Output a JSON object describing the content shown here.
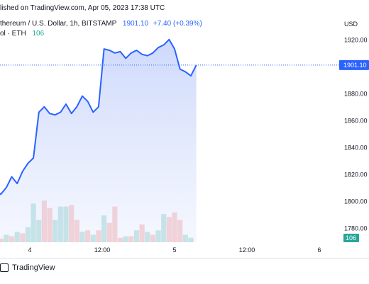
{
  "header": {
    "published": "lished on TradingView.com, Apr 05, 2023 17:38 UTC",
    "symbol": "thereum / U.S. Dollar, 1h, BITSTAMP",
    "last_value": "1901.10",
    "change": "+7.40 (+0.39%)",
    "volume_label": "ol · ETH",
    "volume_value": "106"
  },
  "axis": {
    "currency": "USD",
    "price_label": "1901.10",
    "volume_label": "106"
  },
  "footer": {
    "brand": "TradingView"
  },
  "colors": {
    "line": "#2962ff",
    "area": "#d5defc",
    "up": "#26a69a",
    "down": "#ef5350"
  },
  "chart_data": {
    "type": "line",
    "x_label": "",
    "y_label": "USD",
    "ylim": [
      1770,
      1930
    ],
    "y_ticks": [
      1780,
      1800,
      1820,
      1840,
      1860,
      1880,
      1900,
      1920
    ],
    "x_ticks": [
      {
        "label": "4",
        "t": 5
      },
      {
        "label": "12:00",
        "t": 13
      },
      {
        "label": "5",
        "t": 21
      },
      {
        "label": "12:00",
        "t": 29
      },
      {
        "label": "6",
        "t": 37
      }
    ],
    "price": [
      {
        "t": -3.5,
        "y": 1825
      },
      {
        "t": -2.9,
        "y": 1782
      },
      {
        "t": -2.3,
        "y": 1795
      },
      {
        "t": -1.8,
        "y": 1805
      },
      {
        "t": -1.2,
        "y": 1810
      },
      {
        "t": -0.6,
        "y": 1805
      },
      {
        "t": 0.0,
        "y": 1806
      },
      {
        "t": 0.6,
        "y": 1807
      },
      {
        "t": 1.2,
        "y": 1808
      },
      {
        "t": 1.8,
        "y": 1805
      },
      {
        "t": 2.4,
        "y": 1810
      },
      {
        "t": 3.0,
        "y": 1818
      },
      {
        "t": 3.6,
        "y": 1813
      },
      {
        "t": 4.2,
        "y": 1822
      },
      {
        "t": 4.8,
        "y": 1828
      },
      {
        "t": 5.4,
        "y": 1832
      },
      {
        "t": 6.0,
        "y": 1866
      },
      {
        "t": 6.6,
        "y": 1870
      },
      {
        "t": 7.2,
        "y": 1865
      },
      {
        "t": 7.8,
        "y": 1864
      },
      {
        "t": 8.4,
        "y": 1866
      },
      {
        "t": 9.0,
        "y": 1872
      },
      {
        "t": 9.6,
        "y": 1865
      },
      {
        "t": 10.2,
        "y": 1870
      },
      {
        "t": 10.8,
        "y": 1878
      },
      {
        "t": 11.4,
        "y": 1874
      },
      {
        "t": 12.0,
        "y": 1866
      },
      {
        "t": 12.6,
        "y": 1870
      },
      {
        "t": 13.2,
        "y": 1913
      },
      {
        "t": 13.8,
        "y": 1912
      },
      {
        "t": 14.4,
        "y": 1910
      },
      {
        "t": 15.0,
        "y": 1911
      },
      {
        "t": 15.6,
        "y": 1906
      },
      {
        "t": 16.2,
        "y": 1910
      },
      {
        "t": 16.8,
        "y": 1912
      },
      {
        "t": 17.4,
        "y": 1909
      },
      {
        "t": 18.0,
        "y": 1908
      },
      {
        "t": 18.6,
        "y": 1910
      },
      {
        "t": 19.2,
        "y": 1914
      },
      {
        "t": 19.8,
        "y": 1916
      },
      {
        "t": 20.4,
        "y": 1920
      },
      {
        "t": 21.0,
        "y": 1913
      },
      {
        "t": 21.6,
        "y": 1898
      },
      {
        "t": 22.2,
        "y": 1896
      },
      {
        "t": 22.8,
        "y": 1893
      },
      {
        "t": 23.4,
        "y": 1901
      }
    ],
    "volume": [
      {
        "t": -3.0,
        "v": 30,
        "up": false
      },
      {
        "t": -2.4,
        "v": 12,
        "up": true
      },
      {
        "t": -1.8,
        "v": 18,
        "up": false
      },
      {
        "t": -1.2,
        "v": 6,
        "up": true
      },
      {
        "t": -0.6,
        "v": 5,
        "up": false
      },
      {
        "t": 0.0,
        "v": 6,
        "up": true
      },
      {
        "t": 0.6,
        "v": 5,
        "up": false
      },
      {
        "t": 1.2,
        "v": 4,
        "up": true
      },
      {
        "t": 1.8,
        "v": 5,
        "up": false
      },
      {
        "t": 2.4,
        "v": 10,
        "up": true
      },
      {
        "t": 3.0,
        "v": 8,
        "up": false
      },
      {
        "t": 3.6,
        "v": 14,
        "up": true
      },
      {
        "t": 4.2,
        "v": 12,
        "up": false
      },
      {
        "t": 4.8,
        "v": 20,
        "up": true
      },
      {
        "t": 5.4,
        "v": 52,
        "up": true
      },
      {
        "t": 6.0,
        "v": 30,
        "up": true
      },
      {
        "t": 6.6,
        "v": 56,
        "up": false
      },
      {
        "t": 7.2,
        "v": 46,
        "up": false
      },
      {
        "t": 7.8,
        "v": 30,
        "up": true
      },
      {
        "t": 8.4,
        "v": 48,
        "up": true
      },
      {
        "t": 9.0,
        "v": 48,
        "up": true
      },
      {
        "t": 9.6,
        "v": 50,
        "up": false
      },
      {
        "t": 10.2,
        "v": 30,
        "up": false
      },
      {
        "t": 10.8,
        "v": 14,
        "up": true
      },
      {
        "t": 11.4,
        "v": 16,
        "up": false
      },
      {
        "t": 12.0,
        "v": 10,
        "up": true
      },
      {
        "t": 12.6,
        "v": 16,
        "up": false
      },
      {
        "t": 13.2,
        "v": 36,
        "up": true
      },
      {
        "t": 13.8,
        "v": 26,
        "up": false
      },
      {
        "t": 14.4,
        "v": 48,
        "up": false
      },
      {
        "t": 15.0,
        "v": 6,
        "up": false
      },
      {
        "t": 15.6,
        "v": 8,
        "up": true
      },
      {
        "t": 16.2,
        "v": 8,
        "up": false
      },
      {
        "t": 16.8,
        "v": 16,
        "up": true
      },
      {
        "t": 17.4,
        "v": 24,
        "up": false
      },
      {
        "t": 18.0,
        "v": 14,
        "up": true
      },
      {
        "t": 18.6,
        "v": 10,
        "up": false
      },
      {
        "t": 19.2,
        "v": 16,
        "up": true
      },
      {
        "t": 19.8,
        "v": 38,
        "up": true
      },
      {
        "t": 20.4,
        "v": 34,
        "up": false
      },
      {
        "t": 21.0,
        "v": 40,
        "up": false
      },
      {
        "t": 21.6,
        "v": 30,
        "up": false
      },
      {
        "t": 22.2,
        "v": 10,
        "up": true
      },
      {
        "t": 22.8,
        "v": 6,
        "up": true
      }
    ]
  }
}
